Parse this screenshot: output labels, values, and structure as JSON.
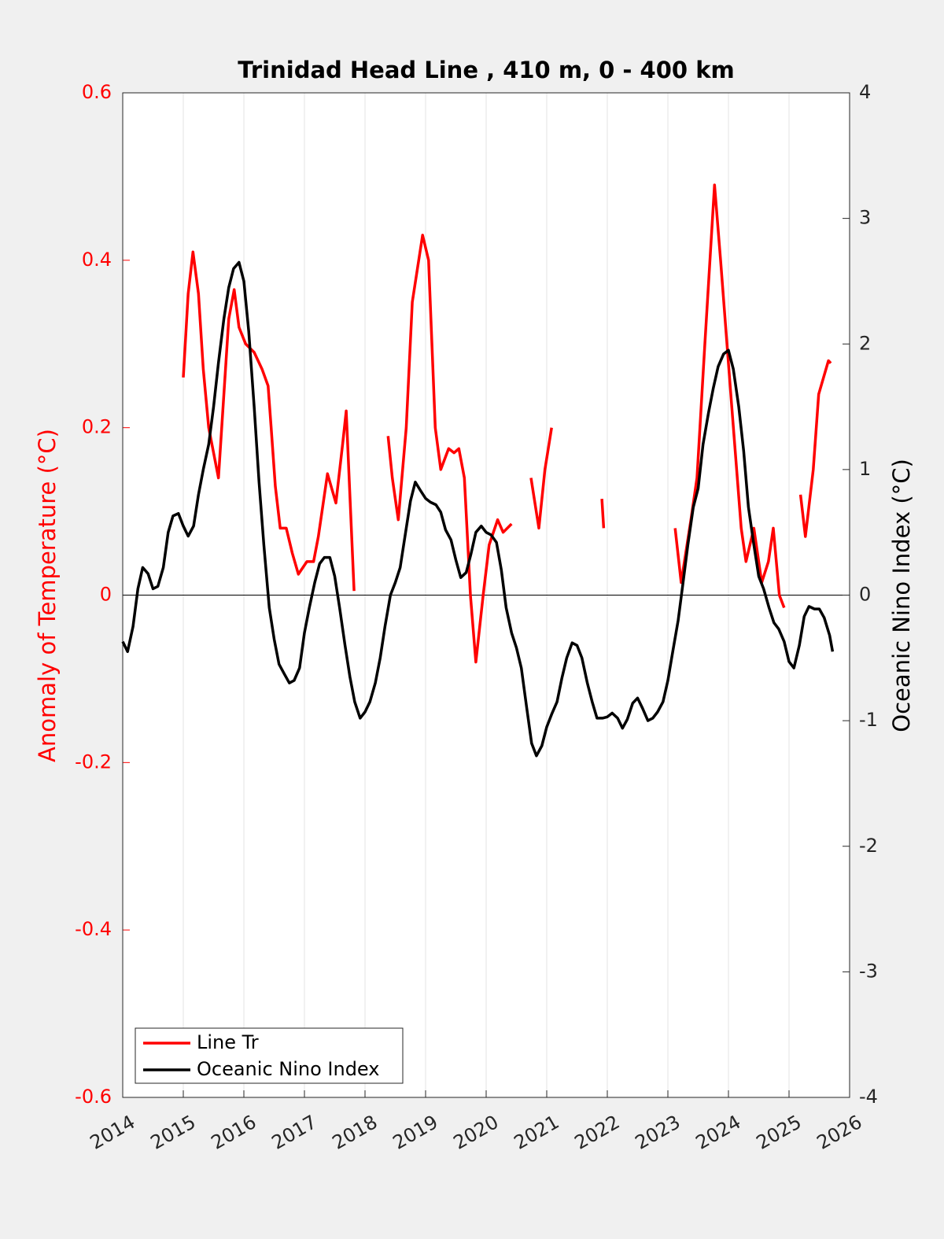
{
  "chart_data": {
    "type": "line",
    "title": "Trinidad Head Line , 410 m, 0 - 400 km",
    "ylabel": "Anomaly of Temperature (°C)",
    "y2label": "Oceanic Nino Index (°C)",
    "xlim": [
      2014,
      2026
    ],
    "xticks": [
      2014,
      2015,
      2016,
      2017,
      2018,
      2019,
      2020,
      2021,
      2022,
      2023,
      2024,
      2025,
      2026
    ],
    "ylim": [
      -0.6,
      0.6
    ],
    "yticks": [
      -0.6,
      -0.4,
      -0.2,
      0,
      0.2,
      0.4,
      0.6
    ],
    "y2lim": [
      -4,
      4
    ],
    "y2ticks": [
      -4,
      -3,
      -2,
      -1,
      0,
      1,
      2,
      3,
      4
    ],
    "ycolor": "#ff0000",
    "xgrid": true,
    "legend": "lower left",
    "series": [
      {
        "name": "Line Tr",
        "color": "#ff0000",
        "x": [
          2015.0,
          2015.08,
          2015.16,
          2015.25,
          2015.33,
          2015.42,
          2015.5,
          2015.58,
          2015.67,
          2015.75,
          2015.84,
          2015.92,
          2016.03,
          2016.17,
          2016.3,
          2016.4,
          2016.45,
          2016.52,
          2016.6,
          2016.7,
          2016.8,
          2016.9,
          2017.04,
          2017.15,
          2017.23,
          2017.38,
          2017.52,
          2017.63,
          2017.69,
          2017.82,
          null,
          2018.38,
          2018.45,
          2018.55,
          2018.68,
          2018.78,
          2018.95,
          2019.05,
          2019.16,
          2019.25,
          2019.38,
          2019.47,
          2019.55,
          2019.64,
          2019.74,
          2019.83,
          2019.95,
          2020.05,
          2020.19,
          2020.28,
          2020.42,
          null,
          2020.74,
          2020.87,
          2020.97,
          2021.08,
          null,
          2021.91,
          2021.94,
          null,
          2023.12,
          2023.22,
          2023.38,
          2023.48,
          2023.61,
          2023.77,
          2023.87,
          2024.05,
          2024.21,
          2024.29,
          2024.42,
          2024.55,
          2024.66,
          2024.74,
          2024.84,
          2024.92,
          null,
          2025.19,
          2025.27,
          2025.4,
          2025.49,
          2025.65,
          2025.69
        ],
        "values": [
          0.26,
          0.36,
          0.41,
          0.36,
          0.27,
          0.2,
          0.17,
          0.14,
          0.24,
          0.33,
          0.365,
          0.32,
          0.3,
          0.29,
          0.27,
          0.25,
          0.2,
          0.13,
          0.08,
          0.08,
          0.05,
          0.025,
          0.04,
          0.04,
          0.07,
          0.145,
          0.11,
          0.18,
          0.22,
          0.005,
          null,
          0.19,
          0.14,
          0.09,
          0.2,
          0.35,
          0.43,
          0.4,
          0.2,
          0.15,
          0.175,
          0.17,
          0.175,
          0.14,
          0.0,
          -0.08,
          0.0,
          0.06,
          0.09,
          0.075,
          0.085,
          null,
          0.14,
          0.08,
          0.15,
          0.2,
          null,
          0.115,
          0.08,
          null,
          0.08,
          0.015,
          0.09,
          0.14,
          0.3,
          0.49,
          0.4,
          0.23,
          0.08,
          0.04,
          0.08,
          0.015,
          0.04,
          0.08,
          0.0,
          -0.015,
          null,
          0.12,
          0.07,
          0.15,
          0.24,
          0.28,
          0.277
        ]
      },
      {
        "name": "Oceanic Nino Index",
        "color": "#000000",
        "axis": "y2",
        "x": [
          2014.0,
          2014.08,
          2014.17,
          2014.25,
          2014.33,
          2014.42,
          2014.5,
          2014.58,
          2014.67,
          2014.75,
          2014.83,
          2014.92,
          2015.0,
          2015.08,
          2015.17,
          2015.25,
          2015.33,
          2015.42,
          2015.5,
          2015.58,
          2015.67,
          2015.75,
          2015.83,
          2015.92,
          2016.0,
          2016.08,
          2016.17,
          2016.25,
          2016.33,
          2016.42,
          2016.5,
          2016.58,
          2016.67,
          2016.75,
          2016.83,
          2016.92,
          2017.0,
          2017.08,
          2017.17,
          2017.25,
          2017.33,
          2017.42,
          2017.5,
          2017.58,
          2017.67,
          2017.75,
          2017.83,
          2017.92,
          2018.0,
          2018.08,
          2018.17,
          2018.25,
          2018.33,
          2018.42,
          2018.5,
          2018.58,
          2018.67,
          2018.75,
          2018.83,
          2018.92,
          2019.0,
          2019.08,
          2019.17,
          2019.25,
          2019.33,
          2019.42,
          2019.5,
          2019.58,
          2019.67,
          2019.75,
          2019.83,
          2019.92,
          2020.0,
          2020.08,
          2020.17,
          2020.25,
          2020.33,
          2020.42,
          2020.5,
          2020.58,
          2020.67,
          2020.75,
          2020.83,
          2020.92,
          2021.0,
          2021.08,
          2021.17,
          2021.25,
          2021.33,
          2021.42,
          2021.5,
          2021.58,
          2021.67,
          2021.75,
          2021.83,
          2021.92,
          2022.0,
          2022.08,
          2022.17,
          2022.25,
          2022.33,
          2022.42,
          2022.5,
          2022.58,
          2022.67,
          2022.75,
          2022.83,
          2022.92,
          2023.0,
          2023.08,
          2023.17,
          2023.25,
          2023.33,
          2023.42,
          2023.5,
          2023.58,
          2023.67,
          2023.75,
          2023.83,
          2023.92,
          2024.0,
          2024.08,
          2024.17,
          2024.25,
          2024.33,
          2024.42,
          2024.5,
          2024.58,
          2024.67,
          2024.75,
          2024.83,
          2024.92,
          2025.0,
          2025.08,
          2025.17,
          2025.25,
          2025.33,
          2025.42,
          2025.5,
          2025.58,
          2025.67,
          2025.72
        ],
        "values": [
          -0.37,
          -0.45,
          -0.25,
          0.05,
          0.22,
          0.17,
          0.05,
          0.07,
          0.22,
          0.5,
          0.63,
          0.65,
          0.55,
          0.47,
          0.55,
          0.8,
          1.0,
          1.2,
          1.5,
          1.85,
          2.2,
          2.45,
          2.6,
          2.65,
          2.5,
          2.1,
          1.5,
          0.9,
          0.4,
          -0.1,
          -0.35,
          -0.55,
          -0.63,
          -0.7,
          -0.68,
          -0.58,
          -0.3,
          -0.1,
          0.1,
          0.25,
          0.3,
          0.3,
          0.15,
          -0.1,
          -0.4,
          -0.65,
          -0.85,
          -0.98,
          -0.93,
          -0.85,
          -0.7,
          -0.5,
          -0.25,
          0.0,
          0.1,
          0.22,
          0.5,
          0.75,
          0.9,
          0.83,
          0.77,
          0.74,
          0.72,
          0.66,
          0.52,
          0.44,
          0.28,
          0.14,
          0.18,
          0.33,
          0.5,
          0.55,
          0.5,
          0.48,
          0.42,
          0.2,
          -0.1,
          -0.3,
          -0.42,
          -0.58,
          -0.9,
          -1.18,
          -1.28,
          -1.2,
          -1.05,
          -0.95,
          -0.85,
          -0.66,
          -0.5,
          -0.38,
          -0.4,
          -0.5,
          -0.7,
          -0.85,
          -0.98,
          -0.98,
          -0.97,
          -0.94,
          -0.98,
          -1.06,
          -0.99,
          -0.86,
          -0.82,
          -0.9,
          -1.0,
          -0.98,
          -0.93,
          -0.85,
          -0.68,
          -0.45,
          -0.2,
          0.1,
          0.4,
          0.7,
          0.85,
          1.2,
          1.45,
          1.65,
          1.82,
          1.92,
          1.95,
          1.8,
          1.5,
          1.15,
          0.7,
          0.4,
          0.15,
          0.05,
          -0.1,
          -0.22,
          -0.27,
          -0.37,
          -0.53,
          -0.58,
          -0.4,
          -0.17,
          -0.09,
          -0.11,
          -0.11,
          -0.18,
          -0.32,
          -0.45
        ]
      }
    ]
  }
}
